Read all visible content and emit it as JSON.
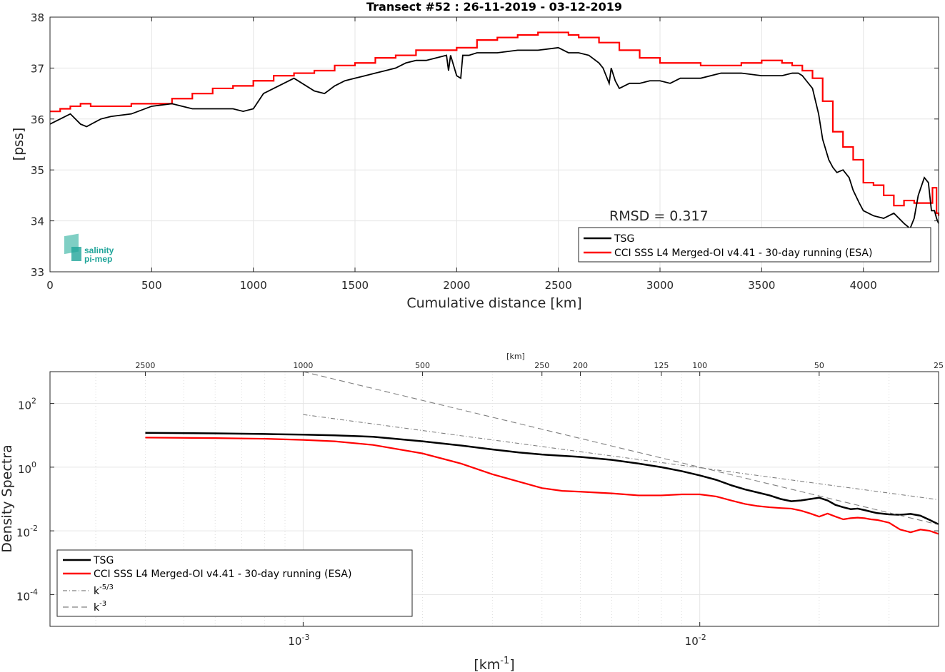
{
  "colors": {
    "tsg": "#000000",
    "cci": "#ff0000",
    "ref": "#808080",
    "logo": "#20a59a"
  },
  "logo": {
    "line1": "salinity",
    "line2": "pi-mep"
  },
  "chart_data": [
    {
      "type": "line",
      "title": "Transect #52 : 26-11-2019 - 03-12-2019",
      "xlabel": "Cumulative distance [km]",
      "ylabel": "[pss]",
      "xlim": [
        0,
        4370
      ],
      "ylim": [
        33,
        38
      ],
      "xticks": [
        "0",
        "500",
        "1000",
        "1500",
        "2000",
        "2500",
        "3000",
        "3500",
        "4000"
      ],
      "yticks": [
        "33",
        "34",
        "35",
        "36",
        "37",
        "38"
      ],
      "grid": true,
      "annotation": "RMSD = 0.317",
      "legend_position": "bottom-right",
      "series": [
        {
          "name": "TSG",
          "x": [
            0,
            50,
            100,
            150,
            180,
            250,
            300,
            400,
            500,
            600,
            700,
            800,
            900,
            950,
            1000,
            1050,
            1100,
            1150,
            1200,
            1300,
            1350,
            1400,
            1450,
            1500,
            1550,
            1600,
            1650,
            1700,
            1750,
            1800,
            1850,
            1900,
            1950,
            1960,
            1970,
            2000,
            2020,
            2030,
            2060,
            2100,
            2200,
            2300,
            2400,
            2500,
            2550,
            2600,
            2650,
            2700,
            2720,
            2750,
            2760,
            2780,
            2800,
            2850,
            2900,
            2950,
            3000,
            3050,
            3100,
            3200,
            3300,
            3400,
            3500,
            3600,
            3650,
            3680,
            3700,
            3720,
            3750,
            3780,
            3800,
            3830,
            3850,
            3870,
            3900,
            3930,
            3950,
            3980,
            4000,
            4050,
            4100,
            4150,
            4200,
            4230,
            4250,
            4270,
            4300,
            4320,
            4335,
            4350,
            4360,
            4370
          ],
          "y": [
            35.9,
            36.0,
            36.1,
            35.9,
            35.85,
            36.0,
            36.05,
            36.1,
            36.25,
            36.3,
            36.2,
            36.2,
            36.2,
            36.15,
            36.2,
            36.5,
            36.6,
            36.7,
            36.8,
            36.55,
            36.5,
            36.65,
            36.75,
            36.8,
            36.85,
            36.9,
            36.95,
            37.0,
            37.1,
            37.15,
            37.15,
            37.2,
            37.25,
            36.95,
            37.25,
            36.85,
            36.8,
            37.25,
            37.25,
            37.3,
            37.3,
            37.35,
            37.35,
            37.4,
            37.3,
            37.3,
            37.25,
            37.1,
            37.0,
            36.7,
            37.0,
            36.75,
            36.6,
            36.7,
            36.7,
            36.75,
            36.75,
            36.7,
            36.8,
            36.8,
            36.9,
            36.9,
            36.85,
            36.85,
            36.9,
            36.9,
            36.85,
            36.75,
            36.6,
            36.1,
            35.6,
            35.2,
            35.05,
            34.95,
            35.0,
            34.85,
            34.6,
            34.35,
            34.2,
            34.1,
            34.05,
            34.15,
            33.95,
            33.85,
            34.05,
            34.5,
            34.85,
            34.75,
            34.2,
            34.2,
            34.05,
            33.95
          ]
        },
        {
          "name": "CCI SSS L4 Merged-OI v4.41 - 30-day running (ESA)",
          "x": [
            0,
            50,
            100,
            150,
            200,
            300,
            400,
            500,
            600,
            700,
            800,
            900,
            1000,
            1100,
            1200,
            1300,
            1400,
            1500,
            1600,
            1700,
            1800,
            1900,
            2000,
            2100,
            2200,
            2300,
            2400,
            2500,
            2550,
            2600,
            2700,
            2800,
            2900,
            3000,
            3100,
            3200,
            3300,
            3400,
            3500,
            3550,
            3600,
            3650,
            3700,
            3750,
            3800,
            3850,
            3900,
            3950,
            4000,
            4050,
            4100,
            4150,
            4200,
            4250,
            4300,
            4340,
            4360,
            4370
          ],
          "y": [
            36.15,
            36.2,
            36.25,
            36.3,
            36.25,
            36.25,
            36.3,
            36.3,
            36.4,
            36.5,
            36.6,
            36.65,
            36.75,
            36.85,
            36.9,
            36.95,
            37.05,
            37.1,
            37.2,
            37.25,
            37.35,
            37.35,
            37.4,
            37.55,
            37.6,
            37.65,
            37.7,
            37.7,
            37.65,
            37.6,
            37.5,
            37.35,
            37.2,
            37.1,
            37.1,
            37.05,
            37.05,
            37.1,
            37.15,
            37.15,
            37.1,
            37.05,
            36.95,
            36.8,
            36.35,
            35.75,
            35.45,
            35.2,
            34.75,
            34.7,
            34.5,
            34.3,
            34.4,
            34.35,
            34.35,
            34.65,
            34.15,
            34.1
          ]
        }
      ]
    },
    {
      "type": "line",
      "title": "",
      "xlabel": "[km",
      "xlabel_sup": "-1",
      "xlabel_end": "]",
      "ylabel": "Density Spectra",
      "top_axis_label": "[km]",
      "x_scale": "log",
      "y_scale": "log",
      "xlim": [
        0.00023,
        0.04
      ],
      "ylim": [
        1e-05,
        1000
      ],
      "xticks": [
        {
          "base": "10",
          "exp": "-3",
          "v": 0.001
        },
        {
          "base": "10",
          "exp": "-2",
          "v": 0.01
        }
      ],
      "yticks": [
        {
          "base": "10",
          "exp": "-4",
          "v": 0.0001
        },
        {
          "base": "10",
          "exp": "-2",
          "v": 0.01
        },
        {
          "base": "10",
          "exp": "0",
          "v": 1
        },
        {
          "base": "10",
          "exp": "2",
          "v": 100
        }
      ],
      "top_ticks": [
        "2500",
        "1000",
        "500",
        "250",
        "200",
        "125",
        "100",
        "50",
        "25"
      ],
      "grid": true,
      "legend_position": "bottom-left",
      "series": [
        {
          "name": "TSG",
          "x": [
            0.0004,
            0.0006,
            0.0008,
            0.001,
            0.0012,
            0.0015,
            0.002,
            0.0025,
            0.003,
            0.0035,
            0.004,
            0.005,
            0.006,
            0.007,
            0.008,
            0.009,
            0.01,
            0.011,
            0.012,
            0.013,
            0.014,
            0.015,
            0.016,
            0.017,
            0.018,
            0.019,
            0.02,
            0.021,
            0.022,
            0.023,
            0.024,
            0.025,
            0.026,
            0.027,
            0.028,
            0.03,
            0.032,
            0.034,
            0.036,
            0.038,
            0.04
          ],
          "y": [
            12,
            11.5,
            11,
            10.5,
            10,
            9,
            6.5,
            4.8,
            3.6,
            2.9,
            2.5,
            2.1,
            1.7,
            1.3,
            1.0,
            0.75,
            0.55,
            0.4,
            0.27,
            0.2,
            0.16,
            0.13,
            0.1,
            0.085,
            0.09,
            0.1,
            0.11,
            0.09,
            0.065,
            0.055,
            0.048,
            0.05,
            0.045,
            0.04,
            0.036,
            0.033,
            0.032,
            0.034,
            0.03,
            0.022,
            0.016
          ]
        },
        {
          "name": "CCI SSS L4 Merged-OI v4.41 - 30-day running (ESA)",
          "x": [
            0.0004,
            0.0006,
            0.0008,
            0.001,
            0.0012,
            0.0015,
            0.002,
            0.0025,
            0.003,
            0.0035,
            0.004,
            0.0045,
            0.005,
            0.006,
            0.007,
            0.008,
            0.009,
            0.01,
            0.011,
            0.012,
            0.013,
            0.014,
            0.015,
            0.016,
            0.017,
            0.018,
            0.019,
            0.02,
            0.021,
            0.022,
            0.023,
            0.024,
            0.025,
            0.026,
            0.027,
            0.028,
            0.03,
            0.032,
            0.034,
            0.036,
            0.038,
            0.04
          ],
          "y": [
            8.5,
            8.2,
            7.8,
            7.2,
            6.5,
            5,
            2.7,
            1.3,
            0.6,
            0.35,
            0.22,
            0.18,
            0.17,
            0.15,
            0.13,
            0.13,
            0.14,
            0.14,
            0.12,
            0.09,
            0.07,
            0.06,
            0.055,
            0.052,
            0.05,
            0.043,
            0.035,
            0.028,
            0.035,
            0.028,
            0.023,
            0.025,
            0.026,
            0.025,
            0.023,
            0.022,
            0.018,
            0.011,
            0.009,
            0.011,
            0.01,
            0.008
          ]
        },
        {
          "name": "k-5/3",
          "name_base": "k",
          "name_sup": "-5/3",
          "x": [
            0.001,
            0.04
          ],
          "y": [
            45,
            0.095
          ]
        },
        {
          "name": "k-3",
          "name_base": "k",
          "name_sup": "-3",
          "x": [
            0.001,
            0.04
          ],
          "y": [
            1000,
            0.0156
          ]
        }
      ]
    }
  ]
}
